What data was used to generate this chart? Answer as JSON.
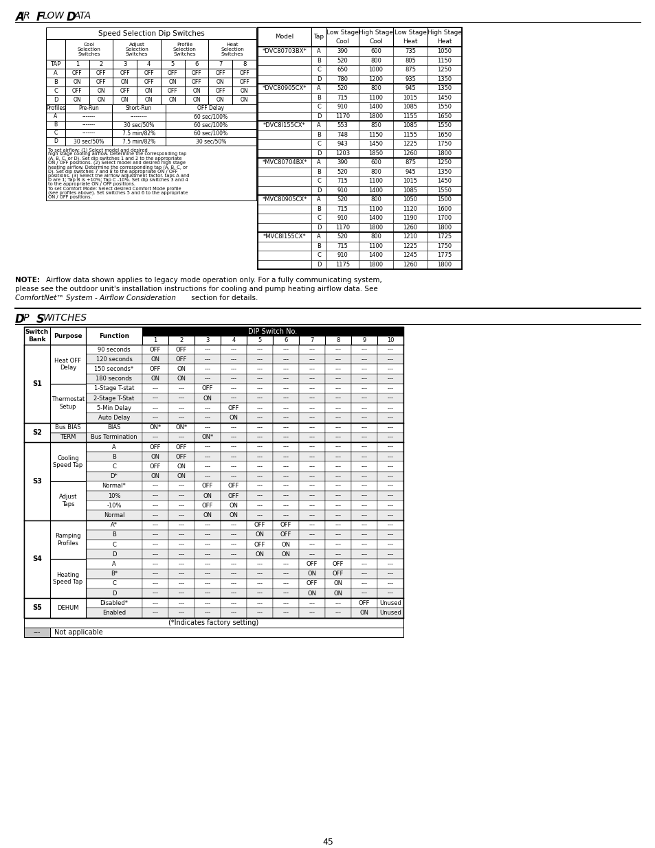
{
  "page_num": "45",
  "dip_switch_rows": [
    [
      "A",
      "OFF",
      "OFF",
      "OFF",
      "OFF",
      "OFF",
      "OFF",
      "OFF",
      "OFF"
    ],
    [
      "B",
      "ON",
      "OFF",
      "ON",
      "OFF",
      "ON",
      "OFF",
      "ON",
      "OFF"
    ],
    [
      "C",
      "OFF",
      "ON",
      "OFF",
      "ON",
      "OFF",
      "ON",
      "OFF",
      "ON"
    ],
    [
      "D",
      "ON",
      "ON",
      "ON",
      "ON",
      "ON",
      "ON",
      "ON",
      "ON"
    ]
  ],
  "profiles_rows": [
    [
      "A",
      "-------",
      "---------",
      "60 sec/100%"
    ],
    [
      "B",
      "-------",
      "30 sec/50%",
      "60 sec/100%"
    ],
    [
      "C",
      "-------",
      "7.5 min/82%",
      "60 sec/100%"
    ],
    [
      "D",
      "30 sec/50%",
      "7.5 min/82%",
      "30 sec/50%"
    ]
  ],
  "instruction_text": "To set airflow: (1) Select model and desired\nhigh stage cooling airflow. Determine the corresponding tap\n(A, B, C, or D). Set dip switches 1 and 2 to the appropriate\nON / OFF positions. (2) Select model and desired high stage\nheating airflow. Determine the corresponding tap (A, B, C, or\nD). Set dip switches 7 and 8 to the appropriate ON / OFF\npositions. (3) Select the airflow adjustment factor. taps A and\nD are 1; Tap B is +10%; Tap C -10%. Set dip switches 3 and 4\nto the appropriate ON / OFF positions.\nTo set Comfort Mode: Select desired Comfort Mode profile\n(see profiles above). Set switches 5 and 6 to the appropriate\nON / OFF positions.",
  "airflow_data": [
    [
      "*DVC80703BX*",
      "A",
      "390",
      "600",
      "735",
      "1050"
    ],
    [
      "",
      "B",
      "520",
      "800",
      "805",
      "1150"
    ],
    [
      "",
      "C",
      "650",
      "1000",
      "875",
      "1250"
    ],
    [
      "",
      "D",
      "780",
      "1200",
      "935",
      "1350"
    ],
    [
      "*DVC80905CX*",
      "A",
      "520",
      "800",
      "945",
      "1350"
    ],
    [
      "",
      "B",
      "715",
      "1100",
      "1015",
      "1450"
    ],
    [
      "",
      "C",
      "910",
      "1400",
      "1085",
      "1550"
    ],
    [
      "",
      "D",
      "1170",
      "1800",
      "1155",
      "1650"
    ],
    [
      "*DVC8I155CX*",
      "A",
      "553",
      "850",
      "1085",
      "1550"
    ],
    [
      "",
      "B",
      "748",
      "1150",
      "1155",
      "1650"
    ],
    [
      "",
      "C",
      "943",
      "1450",
      "1225",
      "1750"
    ],
    [
      "",
      "D",
      "1203",
      "1850",
      "1260",
      "1800"
    ],
    [
      "*MVC80704BX*",
      "A",
      "390",
      "600",
      "875",
      "1250"
    ],
    [
      "",
      "B",
      "520",
      "800",
      "945",
      "1350"
    ],
    [
      "",
      "C",
      "715",
      "1100",
      "1015",
      "1450"
    ],
    [
      "",
      "D",
      "910",
      "1400",
      "1085",
      "1550"
    ],
    [
      "*MVC80905CX*",
      "A",
      "520",
      "800",
      "1050",
      "1500"
    ],
    [
      "",
      "B",
      "715",
      "1100",
      "1120",
      "1600"
    ],
    [
      "",
      "C",
      "910",
      "1400",
      "1190",
      "1700"
    ],
    [
      "",
      "D",
      "1170",
      "1800",
      "1260",
      "1800"
    ],
    [
      "*MVC8I155CX*",
      "A",
      "520",
      "800",
      "1210",
      "1725"
    ],
    [
      "",
      "B",
      "715",
      "1100",
      "1225",
      "1750"
    ],
    [
      "",
      "C",
      "910",
      "1400",
      "1245",
      "1775"
    ],
    [
      "",
      "D",
      "1175",
      "1800",
      "1260",
      "1800"
    ]
  ],
  "dip2_rows": [
    [
      "S1",
      "Heat OFF\nDelay",
      "90 seconds",
      "OFF",
      "OFF",
      "---",
      "---",
      "---",
      "---",
      "---",
      "---",
      "---",
      "---"
    ],
    [
      "",
      "",
      "120 seconds",
      "ON",
      "OFF",
      "---",
      "---",
      "---",
      "---",
      "---",
      "---",
      "---",
      "---"
    ],
    [
      "",
      "",
      "150 seconds*",
      "OFF",
      "ON",
      "---",
      "---",
      "---",
      "---",
      "---",
      "---",
      "---",
      "---"
    ],
    [
      "",
      "",
      "180 seconds",
      "ON",
      "ON",
      "---",
      "---",
      "---",
      "---",
      "---",
      "---",
      "---",
      "---"
    ],
    [
      "",
      "Thermostat\nSetup",
      "1-Stage T-stat",
      "---",
      "---",
      "OFF",
      "---",
      "---",
      "---",
      "---",
      "---",
      "---",
      "---"
    ],
    [
      "",
      "",
      "2-Stage T-Stat",
      "---",
      "---",
      "ON",
      "---",
      "---",
      "---",
      "---",
      "---",
      "---",
      "---"
    ],
    [
      "",
      "",
      "5-Min Delay",
      "---",
      "---",
      "---",
      "OFF",
      "---",
      "---",
      "---",
      "---",
      "---",
      "---"
    ],
    [
      "",
      "",
      "Auto Delay",
      "---",
      "---",
      "---",
      "ON",
      "---",
      "---",
      "---",
      "---",
      "---",
      "---"
    ],
    [
      "S2",
      "Bus BIAS",
      "BIAS",
      "ON*",
      "ON*",
      "---",
      "---",
      "---",
      "---",
      "---",
      "---",
      "---",
      "---"
    ],
    [
      "",
      "TERM",
      "Bus Termination",
      "---",
      "---",
      "ON*",
      "---",
      "---",
      "---",
      "---",
      "---",
      "---",
      "---"
    ],
    [
      "S3",
      "Cooling\nSpeed Tap",
      "A",
      "OFF",
      "OFF",
      "---",
      "---",
      "---",
      "---",
      "---",
      "---",
      "---",
      "---"
    ],
    [
      "",
      "",
      "B",
      "ON",
      "OFF",
      "---",
      "---",
      "---",
      "---",
      "---",
      "---",
      "---",
      "---"
    ],
    [
      "",
      "",
      "C",
      "OFF",
      "ON",
      "---",
      "---",
      "---",
      "---",
      "---",
      "---",
      "---",
      "---"
    ],
    [
      "",
      "",
      "D*",
      "ON",
      "ON",
      "---",
      "---",
      "---",
      "---",
      "---",
      "---",
      "---",
      "---"
    ],
    [
      "",
      "Adjust\nTaps",
      "Normal*",
      "---",
      "---",
      "OFF",
      "OFF",
      "---",
      "---",
      "---",
      "---",
      "---",
      "---"
    ],
    [
      "",
      "",
      "10%",
      "---",
      "---",
      "ON",
      "OFF",
      "---",
      "---",
      "---",
      "---",
      "---",
      "---"
    ],
    [
      "",
      "",
      "-10%",
      "---",
      "---",
      "OFF",
      "ON",
      "---",
      "---",
      "---",
      "---",
      "---",
      "---"
    ],
    [
      "",
      "",
      "Normal",
      "---",
      "---",
      "ON",
      "ON",
      "---",
      "---",
      "---",
      "---",
      "---",
      "---"
    ],
    [
      "S4",
      "Ramping\nProfiles",
      "A*",
      "---",
      "---",
      "---",
      "---",
      "OFF",
      "OFF",
      "---",
      "---",
      "---",
      "---"
    ],
    [
      "",
      "",
      "B",
      "---",
      "---",
      "---",
      "---",
      "ON",
      "OFF",
      "---",
      "---",
      "---",
      "---"
    ],
    [
      "",
      "",
      "C",
      "---",
      "---",
      "---",
      "---",
      "OFF",
      "ON",
      "---",
      "---",
      "---",
      "---"
    ],
    [
      "",
      "",
      "D",
      "---",
      "---",
      "---",
      "---",
      "ON",
      "ON",
      "---",
      "---",
      "---",
      "---"
    ],
    [
      "",
      "Heating\nSpeed Tap",
      "A",
      "---",
      "---",
      "---",
      "---",
      "---",
      "---",
      "OFF",
      "OFF",
      "---",
      "---"
    ],
    [
      "",
      "",
      "B*",
      "---",
      "---",
      "---",
      "---",
      "---",
      "---",
      "ON",
      "OFF",
      "---",
      "---"
    ],
    [
      "",
      "",
      "C",
      "---",
      "---",
      "---",
      "---",
      "---",
      "---",
      "OFF",
      "ON",
      "---",
      "---"
    ],
    [
      "",
      "",
      "D",
      "---",
      "---",
      "---",
      "---",
      "---",
      "---",
      "ON",
      "ON",
      "---",
      "---"
    ],
    [
      "S5",
      "DEHUM",
      "Disabled*",
      "---",
      "---",
      "---",
      "---",
      "---",
      "---",
      "---",
      "---",
      "OFF",
      "Unused"
    ],
    [
      "",
      "",
      "Enabled",
      "---",
      "---",
      "---",
      "---",
      "---",
      "---",
      "---",
      "---",
      "ON",
      "Unused"
    ]
  ],
  "factory_note": "(*Indicates factory setting)",
  "na_note": "Not applicable"
}
